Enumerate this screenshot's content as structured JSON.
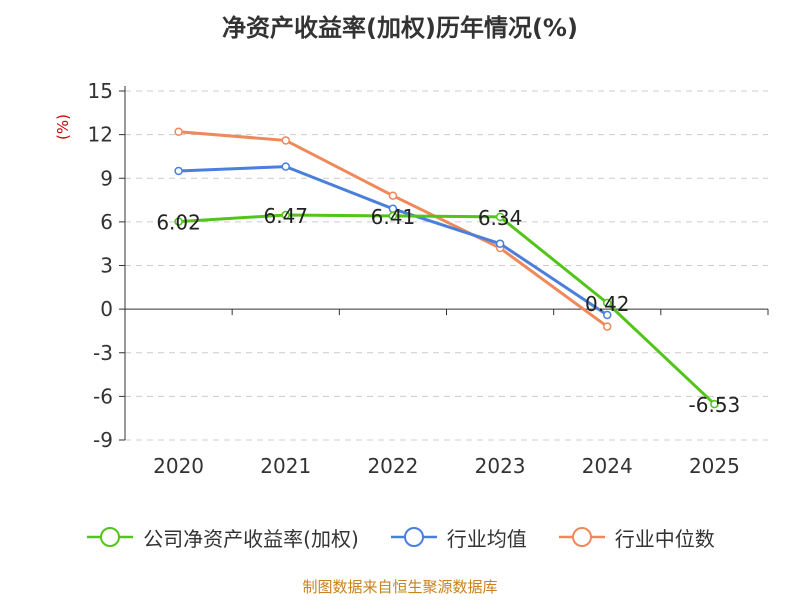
{
  "chart_data": {
    "type": "line",
    "title": "净资产收益率(加权)历年情况(%)",
    "ylabel": "(%)",
    "xlabel": "",
    "categories": [
      "2020",
      "2021",
      "2022",
      "2023",
      "2024",
      "2025"
    ],
    "yticks": [
      "15",
      "12",
      "9",
      "6",
      "3",
      "0",
      "-3",
      "-6",
      "-9"
    ],
    "ylim": [
      -9,
      15
    ],
    "grid": true,
    "legend_position": "bottom",
    "series": [
      {
        "name": "公司净资产收益率(加权)",
        "color": "#52c41a",
        "values": [
          6.02,
          6.47,
          6.41,
          6.34,
          0.42,
          -6.53
        ],
        "labels": [
          "6.02",
          "6.47",
          "6.41",
          "6.34",
          "0.42",
          "-6.53"
        ]
      },
      {
        "name": "行业均值",
        "color": "#4a7fdc",
        "values": [
          9.5,
          9.8,
          6.9,
          4.5,
          -0.4,
          null
        ]
      },
      {
        "name": "行业中位数",
        "color": "#f0895a",
        "values": [
          12.2,
          11.6,
          7.8,
          4.2,
          -1.2,
          null
        ]
      }
    ],
    "source": "制图数据来自恒生聚源数据库"
  }
}
